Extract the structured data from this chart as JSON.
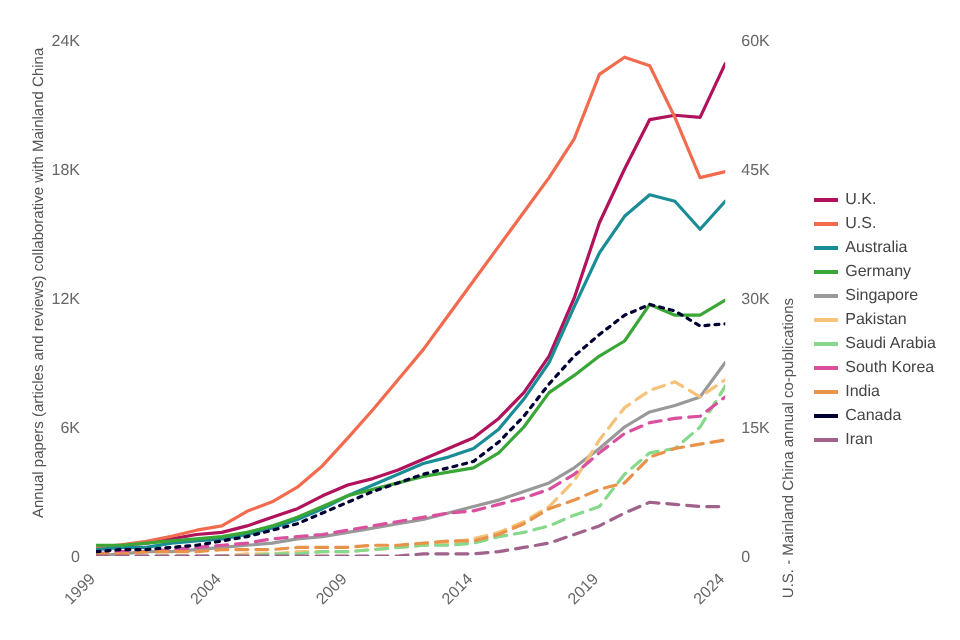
{
  "chart_data": {
    "type": "line",
    "ylabel": "Annual papers (articles and reviews) collaborative with Mainland China",
    "y2label": "U.S. - Mainland China annual co-publications",
    "x": [
      1999,
      2000,
      2001,
      2002,
      2003,
      2004,
      2005,
      2006,
      2007,
      2008,
      2009,
      2010,
      2011,
      2012,
      2013,
      2014,
      2015,
      2016,
      2017,
      2018,
      2019,
      2020,
      2021,
      2022,
      2023,
      2024
    ],
    "xlim": [
      1999,
      2024
    ],
    "xticks": [
      1999,
      2004,
      2009,
      2014,
      2019,
      2024
    ],
    "ylim": [
      0,
      24000
    ],
    "yticks": [
      {
        "value": 0,
        "label": "0"
      },
      {
        "value": 6000,
        "label": "6K"
      },
      {
        "value": 12000,
        "label": "12K"
      },
      {
        "value": 18000,
        "label": "18K"
      },
      {
        "value": 24000,
        "label": "24K"
      }
    ],
    "y2lim": [
      0,
      60000
    ],
    "y2ticks": [
      {
        "value": 0,
        "label": "0"
      },
      {
        "value": 15000,
        "label": "15K"
      },
      {
        "value": 30000,
        "label": "30K"
      },
      {
        "value": 45000,
        "label": "45K"
      },
      {
        "value": 60000,
        "label": "60K"
      }
    ],
    "grid": false,
    "legend": "right",
    "marker": "none",
    "series": [
      {
        "name": "U.K.",
        "color": "#b0125b",
        "line_style": "solid",
        "values": [
          400,
          500,
          600,
          800,
          1000,
          1100,
          1400,
          1800,
          2200,
          2800,
          3300,
          3600,
          4000,
          4500,
          5000,
          5500,
          6400,
          7600,
          9300,
          12000,
          15500,
          18000,
          20300,
          20500,
          20400,
          22900
        ]
      },
      {
        "name": "U.S.",
        "color": "#f26b4f",
        "line_style": "solid",
        "axis": "y2",
        "values": [
          1000,
          1300,
          1700,
          2300,
          3000,
          3500,
          5200,
          6300,
          8000,
          10500,
          13700,
          17000,
          20500,
          24000,
          28000,
          32000,
          36000,
          40000,
          44000,
          48500,
          56000,
          58000,
          57000,
          51000,
          44000,
          44700
        ]
      },
      {
        "name": "Australia",
        "color": "#1a8c96",
        "line_style": "solid",
        "values": [
          300,
          400,
          400,
          600,
          700,
          800,
          1000,
          1300,
          1700,
          2200,
          2800,
          3300,
          3800,
          4300,
          4600,
          5000,
          5900,
          7300,
          9000,
          11600,
          14100,
          15800,
          16800,
          16500,
          15200,
          16500
        ]
      },
      {
        "name": "Germany",
        "color": "#3aa636",
        "line_style": "solid",
        "values": [
          500,
          500,
          600,
          700,
          800,
          900,
          1100,
          1400,
          1800,
          2300,
          2800,
          3100,
          3400,
          3700,
          3900,
          4100,
          4800,
          6000,
          7600,
          8400,
          9300,
          10000,
          11700,
          11200,
          11200,
          11900
        ]
      },
      {
        "name": "Singapore",
        "color": "#999999",
        "line_style": "solid",
        "values": [
          0,
          100,
          200,
          200,
          300,
          400,
          500,
          600,
          800,
          900,
          1100,
          1300,
          1500,
          1700,
          2000,
          2300,
          2600,
          3000,
          3400,
          4100,
          5000,
          6000,
          6700,
          7000,
          7400,
          9000
        ]
      },
      {
        "name": "Pakistan",
        "color": "#f5c27a",
        "line_style": "dashed",
        "values": [
          0,
          0,
          0,
          0,
          0,
          0,
          100,
          100,
          200,
          200,
          200,
          300,
          400,
          500,
          600,
          800,
          1100,
          1600,
          2300,
          3500,
          5400,
          6900,
          7700,
          8100,
          7400,
          8200
        ]
      },
      {
        "name": "Saudi Arabia",
        "color": "#86d98b",
        "line_style": "dashed",
        "values": [
          0,
          0,
          0,
          0,
          0,
          0,
          0,
          100,
          100,
          200,
          200,
          300,
          400,
          500,
          500,
          600,
          900,
          1100,
          1400,
          1900,
          2300,
          3800,
          4800,
          5000,
          6000,
          7900
        ]
      },
      {
        "name": "South Korea",
        "color": "#d9509e",
        "line_style": "dashed",
        "values": [
          100,
          200,
          200,
          300,
          400,
          500,
          600,
          800,
          900,
          1000,
          1200,
          1400,
          1600,
          1800,
          2000,
          2100,
          2400,
          2700,
          3100,
          3800,
          4800,
          5700,
          6200,
          6400,
          6500,
          7400
        ]
      },
      {
        "name": "India",
        "color": "#e8924a",
        "line_style": "dashed",
        "values": [
          100,
          100,
          200,
          200,
          200,
          300,
          300,
          300,
          400,
          400,
          400,
          500,
          500,
          600,
          700,
          700,
          1000,
          1500,
          2200,
          2600,
          3100,
          3400,
          4600,
          5000,
          5200,
          5400
        ]
      },
      {
        "name": "Canada",
        "color": "#000033",
        "line_style": "dotted",
        "values": [
          200,
          300,
          300,
          400,
          500,
          700,
          900,
          1200,
          1500,
          2000,
          2500,
          3000,
          3400,
          3800,
          4100,
          4400,
          5300,
          6500,
          8000,
          9300,
          10300,
          11200,
          11700,
          11400,
          10700,
          10800
        ]
      },
      {
        "name": "Iran",
        "color": "#a0628a",
        "line_style": "dashed",
        "values": [
          0,
          0,
          0,
          0,
          0,
          0,
          0,
          0,
          0,
          0,
          0,
          0,
          0,
          100,
          100,
          100,
          200,
          400,
          600,
          1000,
          1400,
          2000,
          2500,
          2400,
          2300,
          2300
        ]
      }
    ]
  }
}
